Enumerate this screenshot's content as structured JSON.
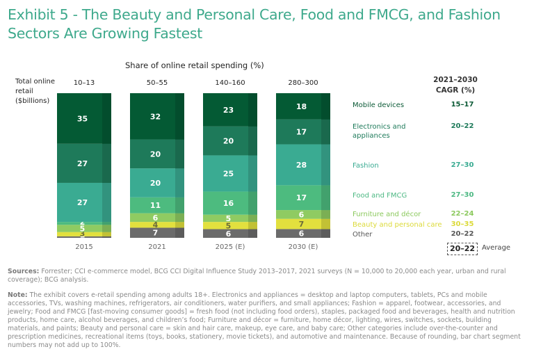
{
  "title": "Exhibit 5 - The Beauty and Personal Care, Food and FMCG, and Fashion Sectors Are Growing Fastest",
  "chart_data": {
    "type": "bar",
    "stacked": true,
    "normalized_percent": true,
    "title": "Share of online retail spending (%)",
    "ylabel": "Total online retail ($billions)",
    "xlabel": "",
    "categories": [
      "2015",
      "2021",
      "2025 (E)",
      "2030 (E)"
    ],
    "totals": [
      "10–13",
      "50–55",
      "140–160",
      "280–300"
    ],
    "series": [
      {
        "name": "Other",
        "color": "#6b6b6b",
        "values": [
          1,
          7,
          6,
          6
        ],
        "label_color": "#ffffff",
        "cagr": "20–22",
        "legend_color": "#555555"
      },
      {
        "name": "Beauty and personal care",
        "color": "#e2e03e",
        "values": [
          3,
          4,
          5,
          7
        ],
        "label_color": "#6b6b3a",
        "cagr": "30–35",
        "legend_color": "#dcda3a"
      },
      {
        "name": "Furniture and décor",
        "color": "#8fcb62",
        "values": [
          5,
          6,
          5,
          6
        ],
        "label_color": "#ffffff",
        "cagr": "22–24",
        "legend_color": "#8cc95e"
      },
      {
        "name": "Food and FMCG",
        "color": "#4dbb7f",
        "values": [
          2,
          11,
          16,
          17
        ],
        "label_color": "#ffffff",
        "cagr": "27–30",
        "legend_color": "#4db883"
      },
      {
        "name": "Fashion",
        "color": "#3aab92",
        "values": [
          27,
          20,
          25,
          28
        ],
        "label_color": "#ffffff",
        "cagr": "27–30",
        "legend_color": "#3aab92"
      },
      {
        "name": "Electronics and appliances",
        "color": "#1e7a5a",
        "values": [
          27,
          20,
          20,
          17
        ],
        "label_color": "#ffffff",
        "cagr": "20–22",
        "legend_color": "#1e7a5a"
      },
      {
        "name": "Mobile devices",
        "color": "#045a34",
        "values": [
          35,
          32,
          23,
          18
        ],
        "label_color": "#ffffff",
        "cagr": "15–17",
        "legend_color": "#0b5a36"
      }
    ],
    "cagr_header": [
      "2021–2030",
      "CAGR (%)"
    ],
    "average_cagr": "20–22",
    "average_label": "Average",
    "legend": "right"
  },
  "labels": {
    "subtitle": "Share of online retail spending (%)",
    "yhead": [
      "Total online",
      "retail",
      "($billions)"
    ]
  },
  "footnotes": {
    "sources_label": "Sources:",
    "sources_text": " Forrester; CCI e-commerce model, BCG CCI Digital Influence Study 2013–2017, 2021 surveys (N = 10,000 to 20,000 each year, urban and rural coverage); BCG analysis.",
    "note_label": "Note:",
    "note_text": " The exhibit covers e-retail spending among adults 18+. Electronics and appliances = desktop and laptop computers, tablets, PCs and mobile accessories, TVs, washing machines, refrigerators, air conditioners, water purifiers, and small appliances; Fashion = apparel, footwear, accessories, and jewelry; Food and FMCG [fast-moving consumer goods] = fresh food (not including food orders), staples, packaged food and beverages, health and nutrition products, home care, alcohol beverages, and children’s food; Furniture and décor = furniture, home décor, lighting, wires, switches, sockets, building materials, and paints; Beauty and personal care = skin and hair care, makeup, eye care, and baby care; Other categories include over-the-counter and prescription medicines, recreational items (toys, books, stationery, movie tickets), and automotive and maintenance. Because of rounding, bar chart segment numbers may not add up to 100%."
  }
}
